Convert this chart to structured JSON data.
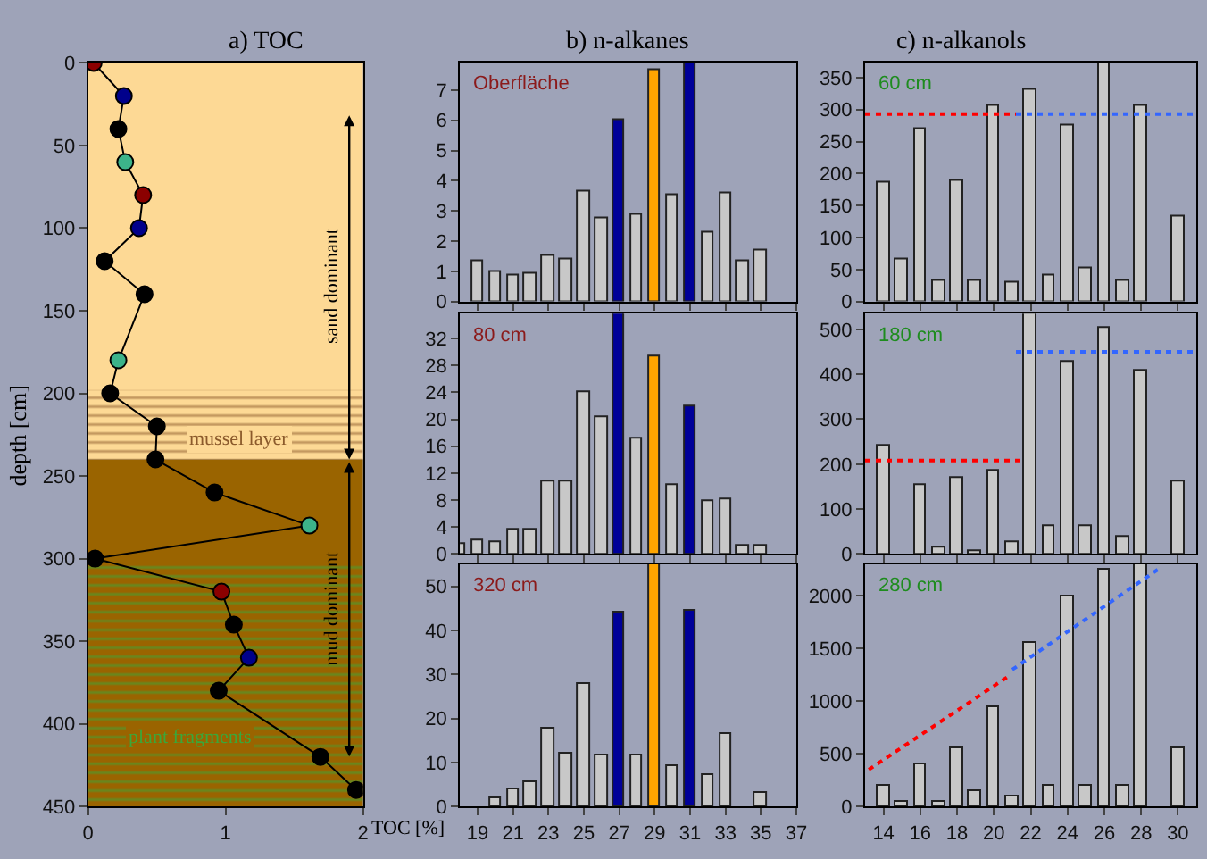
{
  "chart_data": [
    {
      "type": "line",
      "title": "a) TOC",
      "xlabel": "TOC [%]",
      "ylabel": "depth [cm]",
      "xlim": [
        0,
        2
      ],
      "xticks": [
        0,
        1,
        2
      ],
      "ylim": [
        450,
        0
      ],
      "yticks": [
        0,
        50,
        100,
        150,
        200,
        250,
        300,
        350,
        400,
        450
      ],
      "marker": "circle",
      "line_style": "solid",
      "grid": false,
      "series": [
        {
          "color": "#000000",
          "x": [
            0.04,
            0.26,
            0.22,
            0.27,
            0.4,
            0.37,
            0.12,
            0.41,
            0.22,
            0.16,
            0.5,
            0.49,
            0.92,
            1.61,
            0.05,
            0.97,
            1.06,
            1.17,
            0.95,
            1.69,
            1.95
          ],
          "values": [
            0,
            20,
            40,
            60,
            80,
            100,
            120,
            140,
            180,
            200,
            220,
            240,
            260,
            280,
            300,
            320,
            340,
            360,
            380,
            420,
            440
          ],
          "colors": [
            "#8b0000",
            "#00008b",
            "#000000",
            "#3cb38a",
            "#8b0000",
            "#00008b",
            "#000000",
            "#000000",
            "#3cb38a",
            "#000000",
            "#000000",
            "#000000",
            "#000000",
            "#3cb38a",
            "#000000",
            "#8b0000",
            "#000000",
            "#00008b",
            "#000000",
            "#000000",
            "#000000"
          ]
        }
      ],
      "bands": [
        {
          "axis": "y",
          "from": 0,
          "to": 240,
          "label": "sand dominant",
          "color": "#fdd995"
        },
        {
          "axis": "y",
          "from": 240,
          "to": 450,
          "label": "mud dominant",
          "color": "#9a6400"
        },
        {
          "axis": "y",
          "from": 198,
          "to": 240,
          "label": "mussel layer",
          "color": "#8b5a2b"
        },
        {
          "axis": "y",
          "from": 302,
          "to": 450,
          "label": "plant fragments",
          "color": "#3aa83a"
        }
      ]
    },
    {
      "type": "bar",
      "title": "b) n-alkanes",
      "annotations": [
        "Oberfläche"
      ],
      "x": [
        19,
        20,
        21,
        22,
        23,
        24,
        25,
        26,
        27,
        28,
        29,
        30,
        31,
        32,
        33,
        34,
        35
      ],
      "xlim": [
        18,
        37
      ],
      "xticks": [
        19,
        21,
        23,
        25,
        27,
        29,
        31,
        33,
        35,
        37
      ],
      "ylim": [
        0,
        7.9
      ],
      "yticks": [
        0,
        1,
        2,
        3,
        4,
        5,
        6,
        7
      ],
      "tick_labels": "y",
      "grid": false,
      "series": [
        {
          "values": [
            1.35,
            1.0,
            0.85,
            0.95,
            1.5,
            1.4,
            3.65,
            2.75,
            6.0,
            2.85,
            7.65,
            3.5,
            7.9,
            2.3,
            3.6,
            1.35,
            1.7
          ],
          "colors": [
            "#c8c8c8",
            "#c8c8c8",
            "#c8c8c8",
            "#c8c8c8",
            "#c8c8c8",
            "#c8c8c8",
            "#c8c8c8",
            "#c8c8c8",
            "#000099",
            "#c8c8c8",
            "#ffa500",
            "#c8c8c8",
            "#000099",
            "#c8c8c8",
            "#c8c8c8",
            "#c8c8c8",
            "#c8c8c8"
          ]
        }
      ]
    },
    {
      "type": "bar",
      "annotations": [
        "80 cm"
      ],
      "x": [
        18,
        19,
        20,
        21,
        22,
        23,
        24,
        25,
        26,
        27,
        28,
        29,
        30,
        31,
        32,
        33,
        34,
        35
      ],
      "xlim": [
        18,
        37
      ],
      "xticks": [
        19,
        21,
        23,
        25,
        27,
        29,
        31,
        33,
        35,
        37
      ],
      "ylim": [
        0,
        35.7
      ],
      "yticks": [
        0,
        4,
        8,
        12,
        16,
        20,
        24,
        28,
        32
      ],
      "tick_labels": "y",
      "grid": false,
      "series": [
        {
          "values": [
            1.5,
            2.0,
            1.7,
            3.5,
            3.7,
            10.8,
            10.7,
            24,
            20.3,
            35.7,
            17,
            29.3,
            10.3,
            21.8,
            7.9,
            8.2,
            1.3,
            1.1
          ],
          "colors": [
            "#c8c8c8",
            "#c8c8c8",
            "#c8c8c8",
            "#c8c8c8",
            "#c8c8c8",
            "#c8c8c8",
            "#c8c8c8",
            "#c8c8c8",
            "#c8c8c8",
            "#000099",
            "#c8c8c8",
            "#ffa500",
            "#c8c8c8",
            "#000099",
            "#c8c8c8",
            "#c8c8c8",
            "#c8c8c8",
            "#c8c8c8"
          ]
        }
      ]
    },
    {
      "type": "bar",
      "annotations": [
        "320 cm"
      ],
      "x": [
        20,
        21,
        22,
        23,
        24,
        25,
        26,
        27,
        28,
        29,
        30,
        31,
        32,
        33,
        34,
        35
      ],
      "xlim": [
        18,
        37
      ],
      "xticks": [
        19,
        21,
        23,
        25,
        27,
        29,
        31,
        33,
        35,
        37
      ],
      "ylim": [
        0,
        55
      ],
      "yticks": [
        0,
        10,
        20,
        30,
        40,
        50
      ],
      "grid": false,
      "series": [
        {
          "values": [
            2,
            4,
            5.5,
            17.5,
            12,
            28,
            11.5,
            44,
            11.5,
            55,
            9,
            44.5,
            7,
            16.5,
            null,
            3
          ],
          "colors": [
            "#c8c8c8",
            "#c8c8c8",
            "#c8c8c8",
            "#c8c8c8",
            "#c8c8c8",
            "#c8c8c8",
            "#c8c8c8",
            "#000099",
            "#c8c8c8",
            "#ffa500",
            "#c8c8c8",
            "#000099",
            "#c8c8c8",
            "#c8c8c8",
            "#c8c8c8",
            "#c8c8c8"
          ]
        }
      ]
    },
    {
      "type": "bar",
      "title": "c) n-alkanols",
      "annotations": [
        "60 cm"
      ],
      "x": [
        14,
        15,
        16,
        17,
        18,
        19,
        20,
        21,
        22,
        23,
        24,
        25,
        26,
        27,
        28,
        29,
        30
      ],
      "xlim": [
        13,
        31
      ],
      "xticks": [
        14,
        16,
        18,
        20,
        22,
        24,
        26,
        28,
        30
      ],
      "ylim": [
        0,
        373
      ],
      "yticks": [
        0,
        50,
        100,
        150,
        200,
        250,
        300,
        350
      ],
      "tick_labels": "y",
      "grid": false,
      "series": [
        {
          "color": "#c8c8c8",
          "values": [
            185,
            65,
            270,
            33,
            190,
            33,
            305,
            30,
            330,
            40,
            275,
            52,
            373,
            32,
            307,
            null,
            132
          ]
        },
        {
          "type": "line",
          "color": "#ff0000",
          "line_style": "dotted",
          "x": [
            13,
            21.2
          ],
          "values": [
            293,
            293
          ]
        },
        {
          "type": "line",
          "color": "#3366ff",
          "line_style": "dotted",
          "x": [
            21.2,
            31
          ],
          "values": [
            293,
            293
          ]
        }
      ]
    },
    {
      "type": "bar",
      "annotations": [
        "180 cm"
      ],
      "x": [
        14,
        15,
        16,
        17,
        18,
        19,
        20,
        21,
        22,
        23,
        24,
        25,
        26,
        27,
        28,
        29,
        30
      ],
      "xlim": [
        13,
        31
      ],
      "xticks": [
        14,
        16,
        18,
        20,
        22,
        24,
        26,
        28,
        30
      ],
      "ylim": [
        0,
        535
      ],
      "yticks": [
        0,
        100,
        200,
        300,
        400,
        500
      ],
      "tick_labels": "y",
      "grid": false,
      "series": [
        {
          "color": "#c8c8c8",
          "values": [
            240,
            null,
            155,
            13,
            168,
            8,
            185,
            28,
            535,
            60,
            428,
            60,
            503,
            40,
            408,
            null,
            163
          ]
        },
        {
          "type": "line",
          "color": "#ff0000",
          "line_style": "dotted",
          "x": [
            13,
            21.4
          ],
          "values": [
            208,
            208
          ]
        },
        {
          "type": "line",
          "color": "#3366ff",
          "line_style": "dotted",
          "x": [
            21.2,
            31
          ],
          "values": [
            450,
            450
          ]
        }
      ]
    },
    {
      "type": "bar",
      "annotations": [
        "280 cm"
      ],
      "x": [
        14,
        15,
        16,
        17,
        18,
        19,
        20,
        21,
        22,
        23,
        24,
        25,
        26,
        27,
        28,
        29,
        30
      ],
      "xlim": [
        13,
        31
      ],
      "xticks": [
        14,
        16,
        18,
        20,
        22,
        24,
        26,
        28,
        30
      ],
      "ylim": [
        0,
        2300
      ],
      "yticks": [
        0,
        500,
        1000,
        1500,
        2000
      ],
      "grid": false,
      "series": [
        {
          "color": "#c8c8c8",
          "values": [
            200,
            50,
            400,
            50,
            550,
            150,
            950,
            100,
            1550,
            200,
            2000,
            200,
            2250,
            200,
            2300,
            null,
            550
          ]
        },
        {
          "type": "line",
          "color": "#ff0000",
          "line_style": "dotted",
          "x": [
            13.2,
            20.9
          ],
          "values": [
            350,
            1250
          ]
        },
        {
          "type": "line",
          "color": "#3366ff",
          "line_style": "dotted",
          "x": [
            21.0,
            28.9
          ],
          "values": [
            1300,
            2250
          ]
        }
      ]
    }
  ]
}
